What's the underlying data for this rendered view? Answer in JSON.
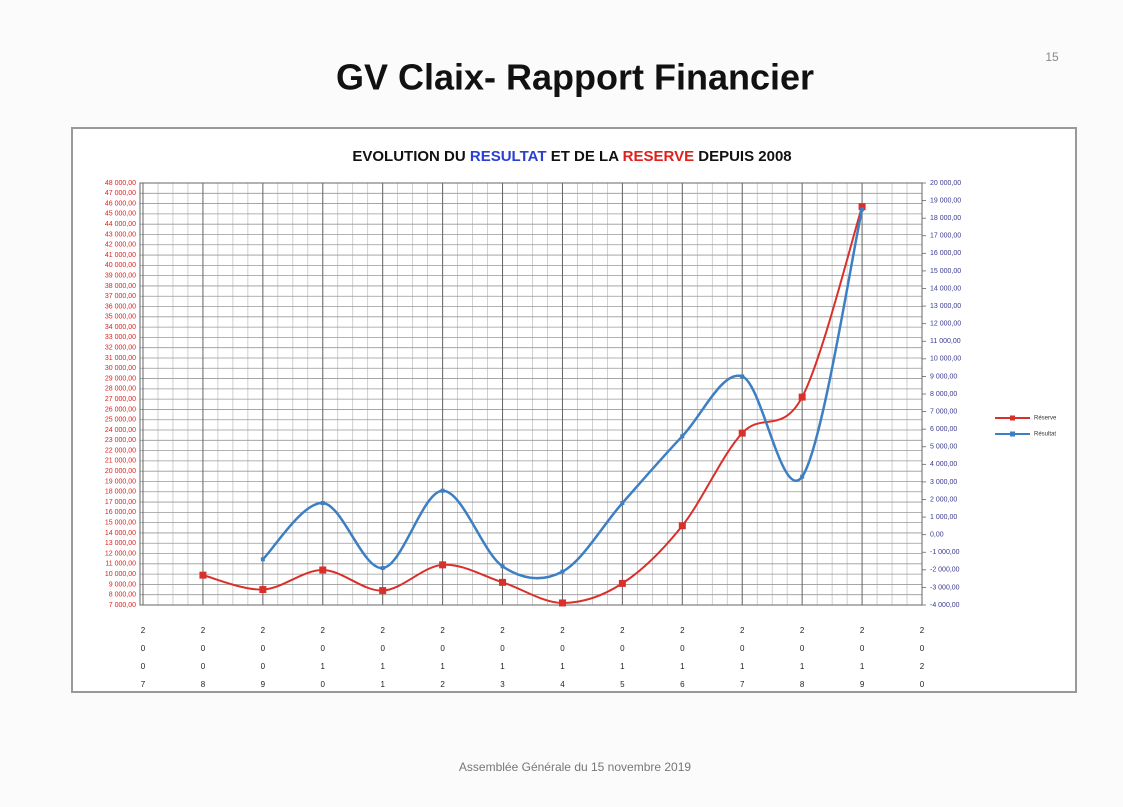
{
  "page_number": "15",
  "slide_title": "GV Claix- Rapport Financier",
  "footer": "Assemblée Générale du 15 novembre 2019",
  "chart_data": {
    "type": "line",
    "title": [
      "EVOLUTION DU ",
      "RESULTAT",
      " ET DE LA ",
      "RESERVE",
      " DEPUIS 2008"
    ],
    "categories": [
      "2007",
      "2008",
      "2009",
      "2010",
      "2011",
      "2012",
      "2013",
      "2014",
      "2015",
      "2016",
      "2017",
      "2018",
      "2019",
      "2020"
    ],
    "series": [
      {
        "name": "Réserve",
        "color": "#d9302c",
        "axis": "y",
        "values": [
          null,
          9900,
          8500,
          10400,
          8400,
          10900,
          9200,
          7200,
          9100,
          14700,
          23700,
          27200,
          45700,
          null
        ]
      },
      {
        "name": "Résultat",
        "color": "#3d7fc4",
        "axis": "y2",
        "values": [
          null,
          null,
          -1400,
          1800,
          -1900,
          2500,
          -1800,
          -2100,
          1800,
          5600,
          9000,
          3300,
          18500,
          null
        ]
      }
    ],
    "ylim": [
      7000,
      48000
    ],
    "yticks": [
      {
        "value": 7000,
        "label": "7 000,00"
      },
      {
        "value": 8000,
        "label": "8 000,00"
      },
      {
        "value": 9000,
        "label": "9 000,00"
      },
      {
        "value": 10000,
        "label": "10 000,00"
      },
      {
        "value": 11000,
        "label": "11 000,00"
      },
      {
        "value": 12000,
        "label": "12 000,00"
      },
      {
        "value": 13000,
        "label": "13 000,00"
      },
      {
        "value": 14000,
        "label": "14 000,00"
      },
      {
        "value": 15000,
        "label": "15 000,00"
      },
      {
        "value": 16000,
        "label": "16 000,00"
      },
      {
        "value": 17000,
        "label": "17 000,00"
      },
      {
        "value": 18000,
        "label": "18 000,00"
      },
      {
        "value": 19000,
        "label": "19 000,00"
      },
      {
        "value": 20000,
        "label": "20 000,00"
      },
      {
        "value": 21000,
        "label": "21 000,00"
      },
      {
        "value": 22000,
        "label": "22 000,00"
      },
      {
        "value": 23000,
        "label": "23 000,00"
      },
      {
        "value": 24000,
        "label": "24 000,00"
      },
      {
        "value": 25000,
        "label": "25 000,00"
      },
      {
        "value": 26000,
        "label": "26 000,00"
      },
      {
        "value": 27000,
        "label": "27 000,00"
      },
      {
        "value": 28000,
        "label": "28 000,00"
      },
      {
        "value": 29000,
        "label": "29 000,00"
      },
      {
        "value": 30000,
        "label": "30 000,00"
      },
      {
        "value": 31000,
        "label": "31 000,00"
      },
      {
        "value": 32000,
        "label": "32 000,00"
      },
      {
        "value": 33000,
        "label": "33 000,00"
      },
      {
        "value": 34000,
        "label": "34 000,00"
      },
      {
        "value": 35000,
        "label": "35 000,00"
      },
      {
        "value": 36000,
        "label": "36 000,00"
      },
      {
        "value": 37000,
        "label": "37 000,00"
      },
      {
        "value": 38000,
        "label": "38 000,00"
      },
      {
        "value": 39000,
        "label": "39 000,00"
      },
      {
        "value": 40000,
        "label": "40 000,00"
      },
      {
        "value": 41000,
        "label": "41 000,00"
      },
      {
        "value": 42000,
        "label": "42 000,00"
      },
      {
        "value": 43000,
        "label": "43 000,00"
      },
      {
        "value": 44000,
        "label": "44 000,00"
      },
      {
        "value": 45000,
        "label": "45 000,00"
      },
      {
        "value": 46000,
        "label": "46 000,00"
      },
      {
        "value": 47000,
        "label": "47 000,00"
      },
      {
        "value": 48000,
        "label": "48 000,00"
      }
    ],
    "y2lim": [
      -4000,
      20000
    ],
    "y2ticks": [
      {
        "value": -4000,
        "label": "-4 000,00"
      },
      {
        "value": -3000,
        "label": "-3 000,00"
      },
      {
        "value": -2000,
        "label": "-2 000,00"
      },
      {
        "value": -1000,
        "label": "-1 000,00"
      },
      {
        "value": 0,
        "label": "0,00"
      },
      {
        "value": 1000,
        "label": "1 000,00"
      },
      {
        "value": 2000,
        "label": "2 000,00"
      },
      {
        "value": 3000,
        "label": "3 000,00"
      },
      {
        "value": 4000,
        "label": "4 000,00"
      },
      {
        "value": 5000,
        "label": "5 000,00"
      },
      {
        "value": 6000,
        "label": "6 000,00"
      },
      {
        "value": 7000,
        "label": "7 000,00"
      },
      {
        "value": 8000,
        "label": "8 000,00"
      },
      {
        "value": 9000,
        "label": "9 000,00"
      },
      {
        "value": 10000,
        "label": "10 000,00"
      },
      {
        "value": 11000,
        "label": "11 000,00"
      },
      {
        "value": 12000,
        "label": "12 000,00"
      },
      {
        "value": 13000,
        "label": "13 000,00"
      },
      {
        "value": 14000,
        "label": "14 000,00"
      },
      {
        "value": 15000,
        "label": "15 000,00"
      },
      {
        "value": 16000,
        "label": "16 000,00"
      },
      {
        "value": 17000,
        "label": "17 000,00"
      },
      {
        "value": 18000,
        "label": "18 000,00"
      },
      {
        "value": 19000,
        "label": "19 000,00"
      },
      {
        "value": 20000,
        "label": "20 000,00"
      }
    ],
    "grid": true,
    "legend": "right"
  }
}
